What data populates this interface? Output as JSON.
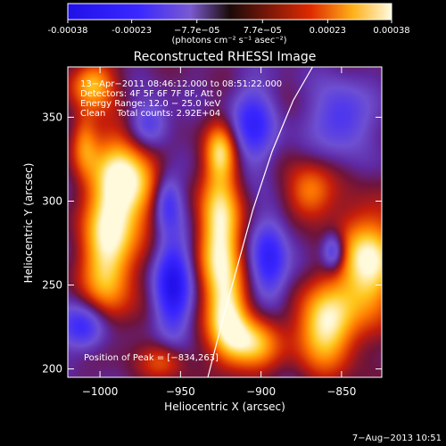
{
  "colorbar": {
    "ticks": [
      {
        "value": -0.00038,
        "label": "-0.00038"
      },
      {
        "value": -0.00023,
        "label": "-0.00023"
      },
      {
        "value": -7.7e-05,
        "label": "−7.7e−05"
      },
      {
        "value": 7.7e-05,
        "label": "7.7e−05"
      },
      {
        "value": 0.00023,
        "label": "0.00023"
      },
      {
        "value": 0.00038,
        "label": "0.00038"
      }
    ],
    "units": "(photons cm⁻² s⁻¹ asec⁻²)",
    "min": -0.00038,
    "max": 0.00038
  },
  "chart_data": {
    "type": "heatmap",
    "title": "Reconstructed RHESSI Image",
    "xlabel": "Heliocentric X (arcsec)",
    "ylabel": "Heliocentric Y (arcsec)",
    "xlim": [
      -1020,
      -825
    ],
    "ylim": [
      195,
      380
    ],
    "xticks": [
      -1000,
      -950,
      -900,
      -850
    ],
    "xtick_labels": [
      "−1000",
      "−950",
      "−900",
      "−850"
    ],
    "yticks": [
      200,
      250,
      300,
      350
    ],
    "ytick_labels": [
      "200",
      "250",
      "300",
      "350"
    ],
    "annotations": [
      "13−Apr−2011 08:46:12.000 to 08:51:22.000",
      "Detectors: 4F 5F 6F 7F 8F, Att 0",
      "Energy Range: 12.0 − 25.0 keV",
      "Clean    Total counts: 2.92E+04"
    ],
    "peak_label": "Position of Peak = [−834,263]",
    "peak": [
      -834,
      263
    ],
    "limb_points": [
      [
        -933,
        195
      ],
      [
        -925,
        225
      ],
      [
        -915,
        260
      ],
      [
        -905,
        295
      ],
      [
        -893,
        330
      ],
      [
        -880,
        360
      ],
      [
        -868,
        380
      ]
    ],
    "blobs": [
      {
        "x": -985,
        "y": 312,
        "sx": 14,
        "sy": 22,
        "a": 1.0
      },
      {
        "x": -995,
        "y": 265,
        "sx": 12,
        "sy": 26,
        "a": 0.85
      },
      {
        "x": -1005,
        "y": 370,
        "sx": 10,
        "sy": 10,
        "a": 0.7
      },
      {
        "x": -925,
        "y": 280,
        "sx": 10,
        "sy": 30,
        "a": 0.95
      },
      {
        "x": -920,
        "y": 230,
        "sx": 9,
        "sy": 18,
        "a": 0.75
      },
      {
        "x": -925,
        "y": 330,
        "sx": 7,
        "sy": 12,
        "a": 0.6
      },
      {
        "x": -834,
        "y": 263,
        "sx": 13,
        "sy": 22,
        "a": 1.0
      },
      {
        "x": -860,
        "y": 225,
        "sx": 14,
        "sy": 18,
        "a": 0.9
      },
      {
        "x": -905,
        "y": 215,
        "sx": 12,
        "sy": 12,
        "a": 0.7
      },
      {
        "x": -870,
        "y": 305,
        "sx": 10,
        "sy": 12,
        "a": 0.6
      },
      {
        "x": -1010,
        "y": 335,
        "sx": 6,
        "sy": 14,
        "a": 0.5
      },
      {
        "x": -960,
        "y": 205,
        "sx": 10,
        "sy": 8,
        "a": 0.45
      }
    ],
    "troughs": [
      {
        "x": -955,
        "y": 250,
        "sx": 8,
        "sy": 20,
        "a": 0.9
      },
      {
        "x": -958,
        "y": 300,
        "sx": 6,
        "sy": 12,
        "a": 0.6
      },
      {
        "x": -895,
        "y": 265,
        "sx": 8,
        "sy": 18,
        "a": 0.75
      },
      {
        "x": -855,
        "y": 270,
        "sx": 5,
        "sy": 8,
        "a": 0.7
      },
      {
        "x": -1010,
        "y": 225,
        "sx": 10,
        "sy": 10,
        "a": 0.7
      },
      {
        "x": -970,
        "y": 345,
        "sx": 9,
        "sy": 10,
        "a": 0.6
      },
      {
        "x": -905,
        "y": 345,
        "sx": 10,
        "sy": 16,
        "a": 0.65
      },
      {
        "x": -850,
        "y": 350,
        "sx": 12,
        "sy": 14,
        "a": 0.55
      }
    ]
  },
  "footer": {
    "timestamp": "7−Aug−2013 10:51"
  }
}
